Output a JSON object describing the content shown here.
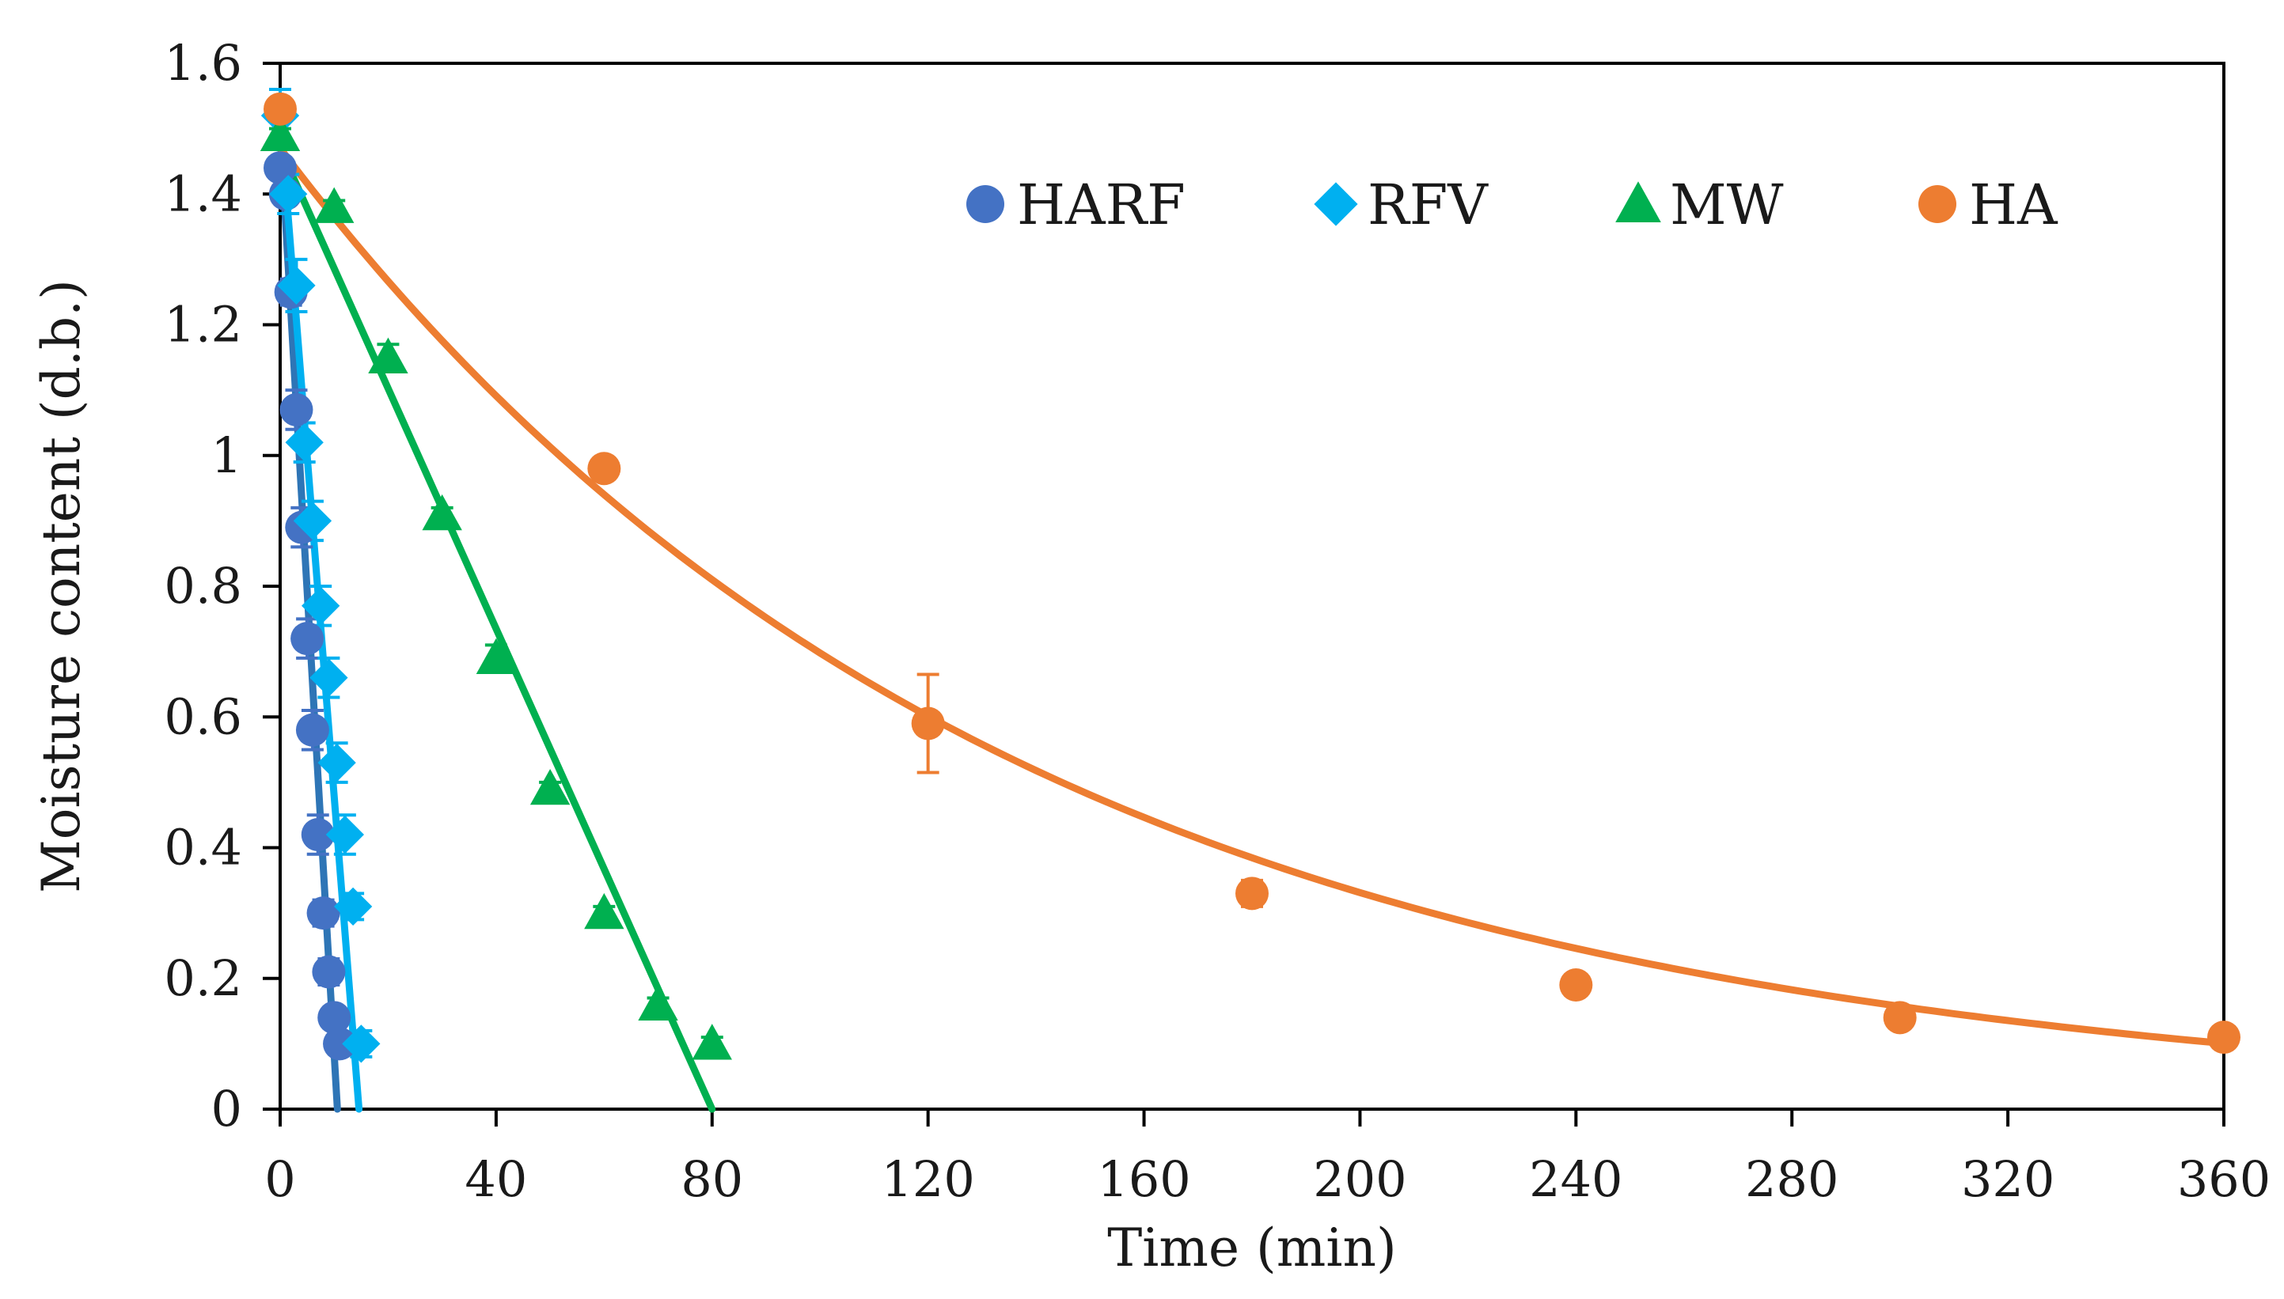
{
  "chart_data": {
    "type": "scatter",
    "title": "",
    "xlabel": "Time (min)",
    "ylabel": "Moisture content (d.b.)",
    "xlim": [
      0,
      360
    ],
    "ylim": [
      0,
      1.6
    ],
    "x_ticks": [
      "0",
      "40",
      "80",
      "120",
      "160",
      "200",
      "240",
      "280",
      "320",
      "360"
    ],
    "y_ticks": [
      "0",
      "0.2",
      "0.4",
      "0.6",
      "0.8",
      "1",
      "1.2",
      "1.4",
      "1.6"
    ],
    "grid": false,
    "legend_position": "top-right",
    "series": [
      {
        "name": "HARF",
        "marker": "circle",
        "color": "#4472c4",
        "line_color": "#2e75b6",
        "fit": "linear",
        "fit_points": [
          [
            0,
            1.5
          ],
          [
            10.6,
            0
          ]
        ],
        "x": [
          0,
          1,
          2,
          3,
          4,
          5,
          6,
          7,
          8,
          9,
          10,
          11
        ],
        "y": [
          1.44,
          1.4,
          1.25,
          1.07,
          0.89,
          0.72,
          0.58,
          0.42,
          0.3,
          0.21,
          0.14,
          0.1
        ],
        "error": [
          0,
          0,
          0.02,
          0.03,
          0.03,
          0.03,
          0.03,
          0.03,
          0.02,
          0.02,
          0.01,
          0.01
        ]
      },
      {
        "name": "RFV",
        "marker": "diamond",
        "color": "#00b0f0",
        "line_color": "#00b0f0",
        "fit": "linear",
        "fit_points": [
          [
            0,
            1.52
          ],
          [
            14.6,
            0
          ]
        ],
        "x": [
          0,
          1.5,
          3,
          4.5,
          6,
          7.5,
          9,
          10.5,
          12,
          13.5,
          15
        ],
        "y": [
          1.52,
          1.4,
          1.26,
          1.02,
          0.9,
          0.77,
          0.66,
          0.53,
          0.42,
          0.31,
          0.1
        ],
        "error": [
          0.04,
          0.03,
          0.04,
          0.03,
          0.03,
          0.03,
          0.03,
          0.03,
          0.03,
          0.02,
          0.02
        ]
      },
      {
        "name": "MW",
        "marker": "triangle",
        "color": "#00b050",
        "line_color": "#00b050",
        "fit": "linear",
        "fit_points": [
          [
            0,
            1.47
          ],
          [
            80,
            0
          ]
        ],
        "x": [
          0,
          10,
          20,
          30,
          40,
          50,
          60,
          70,
          80
        ],
        "y": [
          1.49,
          1.38,
          1.15,
          0.91,
          0.69,
          0.49,
          0.3,
          0.16,
          0.1
        ],
        "error": [
          0.01,
          0.01,
          0.02,
          0.01,
          0.02,
          0.01,
          0.01,
          0.01,
          0.01
        ]
      },
      {
        "name": "HA",
        "marker": "circle",
        "color": "#ed7d31",
        "line_color": "#ed7d31",
        "fit": "exponential",
        "fit_params": {
          "a": 1.47,
          "k": 0.00745
        },
        "x": [
          0,
          60,
          120,
          180,
          240,
          300,
          360
        ],
        "y": [
          1.53,
          0.98,
          0.59,
          0.33,
          0.19,
          0.14,
          0.11
        ],
        "error": [
          0,
          0,
          0.075,
          0.02,
          0,
          0,
          0
        ]
      }
    ]
  }
}
